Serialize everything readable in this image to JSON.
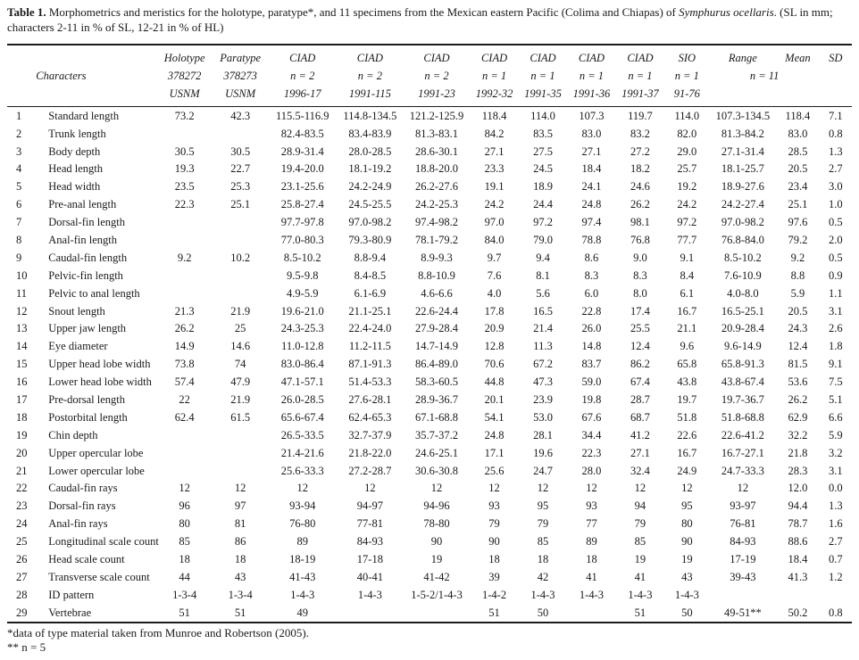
{
  "title": {
    "bold": "Table 1.",
    "rest1": " Morphometrics and meristics for the holotype, paratype*, and 11 specimens from the Mexican eastern Pacific (Colima and Chiapas) of ",
    "species": "Symphurus ocellaris",
    "rest2": ". (SL in mm; characters 2-11 in % of SL, 12-21 in % of HL)"
  },
  "header": {
    "characters_label": "Characters",
    "top": [
      "Holotype",
      "Paratype",
      "CIAD",
      "CIAD",
      "CIAD",
      "CIAD",
      "CIAD",
      "CIAD",
      "CIAD",
      "SIO",
      "Range",
      "Mean",
      "SD"
    ],
    "mid": [
      "378272",
      "378273",
      "n = 2",
      "n = 2",
      "n = 2",
      "n = 1",
      "n = 1",
      "n = 1",
      "n = 1",
      "n = 1"
    ],
    "n11": "n = 11",
    "bottom": [
      "USNM",
      "USNM",
      "1996-17",
      "1991-115",
      "1991-23",
      "1992-32",
      "1991-35",
      "1991-36",
      "1991-37",
      "91-76"
    ]
  },
  "rows": [
    {
      "num": "1",
      "character": "Standard length",
      "values": [
        "73.2",
        "42.3",
        "115.5-116.9",
        "114.8-134.5",
        "121.2-125.9",
        "118.4",
        "114.0",
        "107.3",
        "119.7",
        "114.0",
        "107.3-134.5",
        "118.4",
        "7.1"
      ]
    },
    {
      "num": "2",
      "character": "Trunk length",
      "values": [
        "",
        "",
        "82.4-83.5",
        "83.4-83.9",
        "81.3-83.1",
        "84.2",
        "83.5",
        "83.0",
        "83.2",
        "82.0",
        "81.3-84.2",
        "83.0",
        "0.8"
      ]
    },
    {
      "num": "3",
      "character": "Body depth",
      "values": [
        "30.5",
        "30.5",
        "28.9-31.4",
        "28.0-28.5",
        "28.6-30.1",
        "27.1",
        "27.5",
        "27.1",
        "27.2",
        "29.0",
        "27.1-31.4",
        "28.5",
        "1.3"
      ]
    },
    {
      "num": "4",
      "character": "Head length",
      "values": [
        "19.3",
        "22.7",
        "19.4-20.0",
        "18.1-19.2",
        "18.8-20.0",
        "23.3",
        "24.5",
        "18.4",
        "18.2",
        "25.7",
        "18.1-25.7",
        "20.5",
        "2.7"
      ]
    },
    {
      "num": "5",
      "character": "Head width",
      "values": [
        "23.5",
        "25.3",
        "23.1-25.6",
        "24.2-24.9",
        "26.2-27.6",
        "19.1",
        "18.9",
        "24.1",
        "24.6",
        "19.2",
        "18.9-27.6",
        "23.4",
        "3.0"
      ]
    },
    {
      "num": "6",
      "character": "Pre-anal length",
      "values": [
        "22.3",
        "25.1",
        "25.8-27.4",
        "24.5-25.5",
        "24.2-25.3",
        "24.2",
        "24.4",
        "24.8",
        "26.2",
        "24.2",
        "24.2-27.4",
        "25.1",
        "1.0"
      ]
    },
    {
      "num": "7",
      "character": "Dorsal-fin length",
      "values": [
        "",
        "",
        "97.7-97.8",
        "97.0-98.2",
        "97.4-98.2",
        "97.0",
        "97.2",
        "97.4",
        "98.1",
        "97.2",
        "97.0-98.2",
        "97.6",
        "0.5"
      ]
    },
    {
      "num": "8",
      "character": "Anal-fin length",
      "values": [
        "",
        "",
        "77.0-80.3",
        "79.3-80.9",
        "78.1-79.2",
        "84.0",
        "79.0",
        "78.8",
        "76.8",
        "77.7",
        "76.8-84.0",
        "79.2",
        "2.0"
      ]
    },
    {
      "num": "9",
      "character": "Caudal-fin length",
      "values": [
        "9.2",
        "10.2",
        "8.5-10.2",
        "8.8-9.4",
        "8.9-9.3",
        "9.7",
        "9.4",
        "8.6",
        "9.0",
        "9.1",
        "8.5-10.2",
        "9.2",
        "0.5"
      ]
    },
    {
      "num": "10",
      "character": "Pelvic-fin length",
      "values": [
        "",
        "",
        "9.5-9.8",
        "8.4-8.5",
        "8.8-10.9",
        "7.6",
        "8.1",
        "8.3",
        "8.3",
        "8.4",
        "7.6-10.9",
        "8.8",
        "0.9"
      ]
    },
    {
      "num": "11",
      "character": "Pelvic to anal length",
      "values": [
        "",
        "",
        "4.9-5.9",
        "6.1-6.9",
        "4.6-6.6",
        "4.0",
        "5.6",
        "6.0",
        "8.0",
        "6.1",
        "4.0-8.0",
        "5.9",
        "1.1"
      ]
    },
    {
      "num": "12",
      "character": "Snout length",
      "values": [
        "21.3",
        "21.9",
        "19.6-21.0",
        "21.1-25.1",
        "22.6-24.4",
        "17.8",
        "16.5",
        "22.8",
        "17.4",
        "16.7",
        "16.5-25.1",
        "20.5",
        "3.1"
      ]
    },
    {
      "num": "13",
      "character": "Upper jaw length",
      "values": [
        "26.2",
        "25",
        "24.3-25.3",
        "22.4-24.0",
        "27.9-28.4",
        "20.9",
        "21.4",
        "26.0",
        "25.5",
        "21.1",
        "20.9-28.4",
        "24.3",
        "2.6"
      ]
    },
    {
      "num": "14",
      "character": "Eye diameter",
      "values": [
        "14.9",
        "14.6",
        "11.0-12.8",
        "11.2-11.5",
        "14.7-14.9",
        "12.8",
        "11.3",
        "14.8",
        "12.4",
        "9.6",
        "9.6-14.9",
        "12.4",
        "1.8"
      ]
    },
    {
      "num": "15",
      "character": "Upper head lobe width",
      "values": [
        "73.8",
        "74",
        "83.0-86.4",
        "87.1-91.3",
        "86.4-89.0",
        "70.6",
        "67.2",
        "83.7",
        "86.2",
        "65.8",
        "65.8-91.3",
        "81.5",
        "9.1"
      ]
    },
    {
      "num": "16",
      "character": "Lower head lobe width",
      "values": [
        "57.4",
        "47.9",
        "47.1-57.1",
        "51.4-53.3",
        "58.3-60.5",
        "44.8",
        "47.3",
        "59.0",
        "67.4",
        "43.8",
        "43.8-67.4",
        "53.6",
        "7.5"
      ]
    },
    {
      "num": "17",
      "character": "Pre-dorsal length",
      "values": [
        "22",
        "21.9",
        "26.0-28.5",
        "27.6-28.1",
        "28.9-36.7",
        "20.1",
        "23.9",
        "19.8",
        "28.7",
        "19.7",
        "19.7-36.7",
        "26.2",
        "5.1"
      ]
    },
    {
      "num": "18",
      "character": "Postorbital length",
      "values": [
        "62.4",
        "61.5",
        "65.6-67.4",
        "62.4-65.3",
        "67.1-68.8",
        "54.1",
        "53.0",
        "67.6",
        "68.7",
        "51.8",
        "51.8-68.8",
        "62.9",
        "6.6"
      ]
    },
    {
      "num": "19",
      "character": "Chin depth",
      "values": [
        "",
        "",
        "26.5-33.5",
        "32.7-37.9",
        "35.7-37.2",
        "24.8",
        "28.1",
        "34.4",
        "41.2",
        "22.6",
        "22.6-41.2",
        "32.2",
        "5.9"
      ]
    },
    {
      "num": "20",
      "character": "Upper opercular lobe",
      "values": [
        "",
        "",
        "21.4-21.6",
        "21.8-22.0",
        "24.6-25.1",
        "17.1",
        "19.6",
        "22.3",
        "27.1",
        "16.7",
        "16.7-27.1",
        "21.8",
        "3.2"
      ]
    },
    {
      "num": "21",
      "character": "Lower opercular lobe",
      "values": [
        "",
        "",
        "25.6-33.3",
        "27.2-28.7",
        "30.6-30.8",
        "25.6",
        "24.7",
        "28.0",
        "32.4",
        "24.9",
        "24.7-33.3",
        "28.3",
        "3.1"
      ]
    },
    {
      "num": "22",
      "character": "Caudal-fin rays",
      "values": [
        "12",
        "12",
        "12",
        "12",
        "12",
        "12",
        "12",
        "12",
        "12",
        "12",
        "12",
        "12.0",
        "0.0"
      ]
    },
    {
      "num": "23",
      "character": "Dorsal-fin rays",
      "values": [
        "96",
        "97",
        "93-94",
        "94-97",
        "94-96",
        "93",
        "95",
        "93",
        "94",
        "95",
        "93-97",
        "94.4",
        "1.3"
      ]
    },
    {
      "num": "24",
      "character": "Anal-fin rays",
      "values": [
        "80",
        "81",
        "76-80",
        "77-81",
        "78-80",
        "79",
        "79",
        "77",
        "79",
        "80",
        "76-81",
        "78.7",
        "1.6"
      ]
    },
    {
      "num": "25",
      "character": "Longitudinal scale count",
      "values": [
        "85",
        "86",
        "89",
        "84-93",
        "90",
        "90",
        "85",
        "89",
        "85",
        "90",
        "84-93",
        "88.6",
        "2.7"
      ]
    },
    {
      "num": "26",
      "character": "Head scale count",
      "values": [
        "18",
        "18",
        "18-19",
        "17-18",
        "19",
        "18",
        "18",
        "18",
        "19",
        "19",
        "17-19",
        "18.4",
        "0.7"
      ]
    },
    {
      "num": "27",
      "character": "Transverse scale count",
      "values": [
        "44",
        "43",
        "41-43",
        "40-41",
        "41-42",
        "39",
        "42",
        "41",
        "41",
        "43",
        "39-43",
        "41.3",
        "1.2"
      ]
    },
    {
      "num": "28",
      "character": "ID pattern",
      "values": [
        "1-3-4",
        "1-3-4",
        "1-4-3",
        "1-4-3",
        "1-5-2/1-4-3",
        "1-4-2",
        "1-4-3",
        "1-4-3",
        "1-4-3",
        "1-4-3",
        "",
        "",
        ""
      ]
    },
    {
      "num": "29",
      "character": "Vertebrae",
      "values": [
        "51",
        "51",
        "49",
        "",
        "",
        "51",
        "50",
        "",
        "51",
        "50",
        "49-51**",
        "50.2",
        "0.8"
      ]
    }
  ],
  "footnotes": [
    "*data of type material taken from Munroe and Robertson (2005).",
    "** n = 5"
  ]
}
